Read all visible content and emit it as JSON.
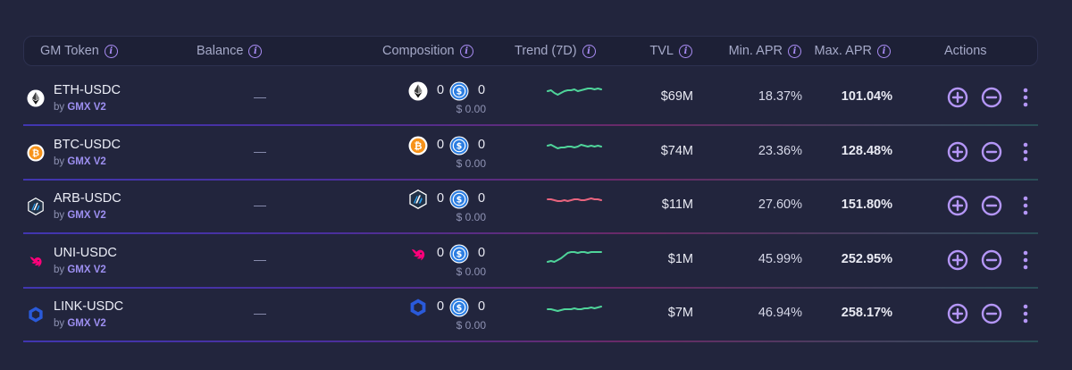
{
  "colors": {
    "background": "#22253d",
    "accent": "#a98cf4",
    "trend_up": "#4fd49a",
    "trend_down": "#e8647e",
    "usdc": "#2b7de1"
  },
  "header": {
    "gm_token": "GM Token",
    "balance": "Balance",
    "composition": "Composition",
    "trend": "Trend (7D)",
    "tvl": "TVL",
    "min_apr": "Min. APR",
    "max_apr": "Max. APR",
    "actions": "Actions",
    "info_glyph": "i"
  },
  "rows": [
    {
      "icon": "eth-icon",
      "name": "ETH-USDC",
      "by": "by",
      "platform": "GMX V2",
      "balance": "—",
      "amount_a": "0",
      "amount_b": "0",
      "usd": "$ 0.00",
      "trend": "up",
      "trend_points": [
        10,
        9,
        12,
        14,
        12,
        10,
        9,
        9,
        8,
        10,
        9,
        8,
        7,
        7,
        8,
        7,
        8
      ],
      "tvl": "$69M",
      "min_apr": "18.37%",
      "max_apr": "101.04%"
    },
    {
      "icon": "btc-icon",
      "name": "BTC-USDC",
      "by": "by",
      "platform": "GMX V2",
      "balance": "—",
      "amount_a": "0",
      "amount_b": "0",
      "usd": "$ 0.00",
      "trend": "up",
      "trend_points": [
        10,
        9,
        11,
        13,
        12,
        12,
        11,
        11,
        12,
        11,
        9,
        10,
        11,
        10,
        11,
        10,
        11
      ],
      "tvl": "$74M",
      "min_apr": "23.36%",
      "max_apr": "128.48%"
    },
    {
      "icon": "arb-icon",
      "name": "ARB-USDC",
      "by": "by",
      "platform": "GMX V2",
      "balance": "—",
      "amount_a": "0",
      "amount_b": "0",
      "usd": "$ 0.00",
      "trend": "down",
      "trend_points": [
        10,
        10,
        11,
        12,
        12,
        11,
        12,
        11,
        10,
        10,
        11,
        11,
        10,
        9,
        10,
        10,
        11
      ],
      "tvl": "$11M",
      "min_apr": "27.60%",
      "max_apr": "151.80%"
    },
    {
      "icon": "uni-icon",
      "name": "UNI-USDC",
      "by": "by",
      "platform": "GMX V2",
      "balance": "—",
      "amount_a": "0",
      "amount_b": "0",
      "usd": "$ 0.00",
      "trend": "up",
      "trend_points": [
        19,
        18,
        19,
        17,
        15,
        12,
        9,
        8,
        8,
        9,
        8,
        8,
        9,
        8,
        8,
        8,
        8
      ],
      "tvl": "$1M",
      "min_apr": "45.99%",
      "max_apr": "252.95%"
    },
    {
      "icon": "link-icon",
      "name": "LINK-USDC",
      "by": "by",
      "platform": "GMX V2",
      "balance": "—",
      "amount_a": "0",
      "amount_b": "0",
      "usd": "$ 0.00",
      "trend": "up",
      "trend_points": [
        12,
        12,
        13,
        14,
        13,
        12,
        12,
        12,
        11,
        12,
        12,
        11,
        11,
        10,
        11,
        10,
        9
      ],
      "tvl": "$7M",
      "min_apr": "46.94%",
      "max_apr": "258.17%"
    }
  ]
}
